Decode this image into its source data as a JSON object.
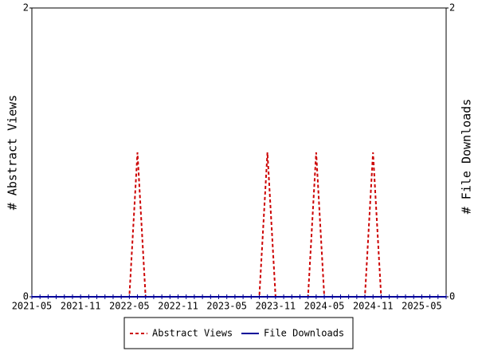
{
  "chart_data": {
    "type": "line",
    "categories": [
      "2021-05",
      null,
      null,
      null,
      null,
      null,
      "2021-11",
      null,
      null,
      null,
      null,
      null,
      "2022-05",
      null,
      null,
      null,
      null,
      null,
      "2022-11",
      null,
      null,
      null,
      null,
      null,
      "2023-05",
      null,
      null,
      null,
      null,
      null,
      "2023-11",
      null,
      null,
      null,
      null,
      null,
      "2024-05",
      null,
      null,
      null,
      null,
      null,
      "2024-11",
      null,
      null,
      null,
      null,
      null,
      "2025-05",
      null,
      null,
      null
    ],
    "series": [
      {
        "name": "Abstract Views",
        "color": "#cc0000",
        "dash": true,
        "values": [
          0,
          0,
          0,
          0,
          0,
          0,
          0,
          0,
          0,
          0,
          0,
          0,
          0,
          1,
          0,
          0,
          0,
          0,
          0,
          0,
          0,
          0,
          0,
          0,
          0,
          0,
          0,
          0,
          0,
          1,
          0,
          0,
          0,
          0,
          0,
          1,
          0,
          0,
          0,
          0,
          0,
          0,
          1,
          0,
          0,
          0,
          0,
          0,
          0,
          0,
          0,
          0
        ]
      },
      {
        "name": "File Downloads",
        "color": "#000099",
        "axis": "y2",
        "values": [
          0,
          0,
          0,
          0,
          0,
          0,
          0,
          0,
          0,
          0,
          0,
          0,
          0,
          0,
          0,
          0,
          0,
          0,
          0,
          0,
          0,
          0,
          0,
          0,
          0,
          0,
          0,
          0,
          0,
          0,
          0,
          0,
          0,
          0,
          0,
          0,
          0,
          0,
          0,
          0,
          0,
          0,
          0,
          0,
          0,
          0,
          0,
          0,
          0,
          0,
          0,
          0
        ]
      }
    ],
    "ylabel": "# Abstract Views",
    "y2label": "# File Downloads",
    "ylim": [
      0,
      2
    ],
    "yticks": [
      0,
      2
    ],
    "y2lim": [
      0,
      2
    ],
    "y2ticks": [
      0,
      2
    ]
  }
}
